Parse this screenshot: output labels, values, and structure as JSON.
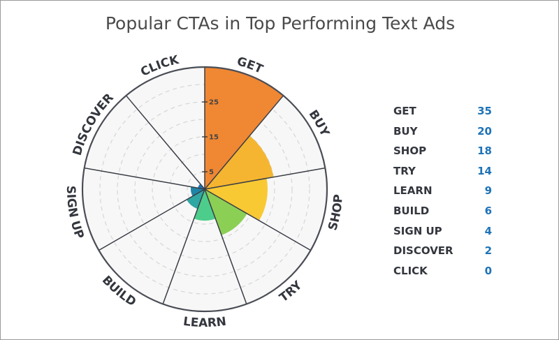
{
  "chart_data": {
    "type": "polar-area",
    "title": "Popular CTAs in Top Performing Text Ads",
    "categories": [
      "GET",
      "BUY",
      "SHOP",
      "TRY",
      "LEARN",
      "BUILD",
      "SIGN UP",
      "DISCOVER",
      "CLICK"
    ],
    "values": [
      35,
      20,
      18,
      14,
      9,
      6,
      4,
      2,
      0
    ],
    "colors": [
      "#f08733",
      "#f5b530",
      "#f8c933",
      "#8ccf55",
      "#4dcd8b",
      "#2fa7a3",
      "#1f84a6",
      "#1f73b7",
      "#1f73b7"
    ],
    "radial_ticks": [
      "5",
      "15",
      "25"
    ],
    "tick_values": [
      5,
      15,
      25
    ],
    "rmax": 35,
    "grid": true,
    "legend_position": "right"
  }
}
